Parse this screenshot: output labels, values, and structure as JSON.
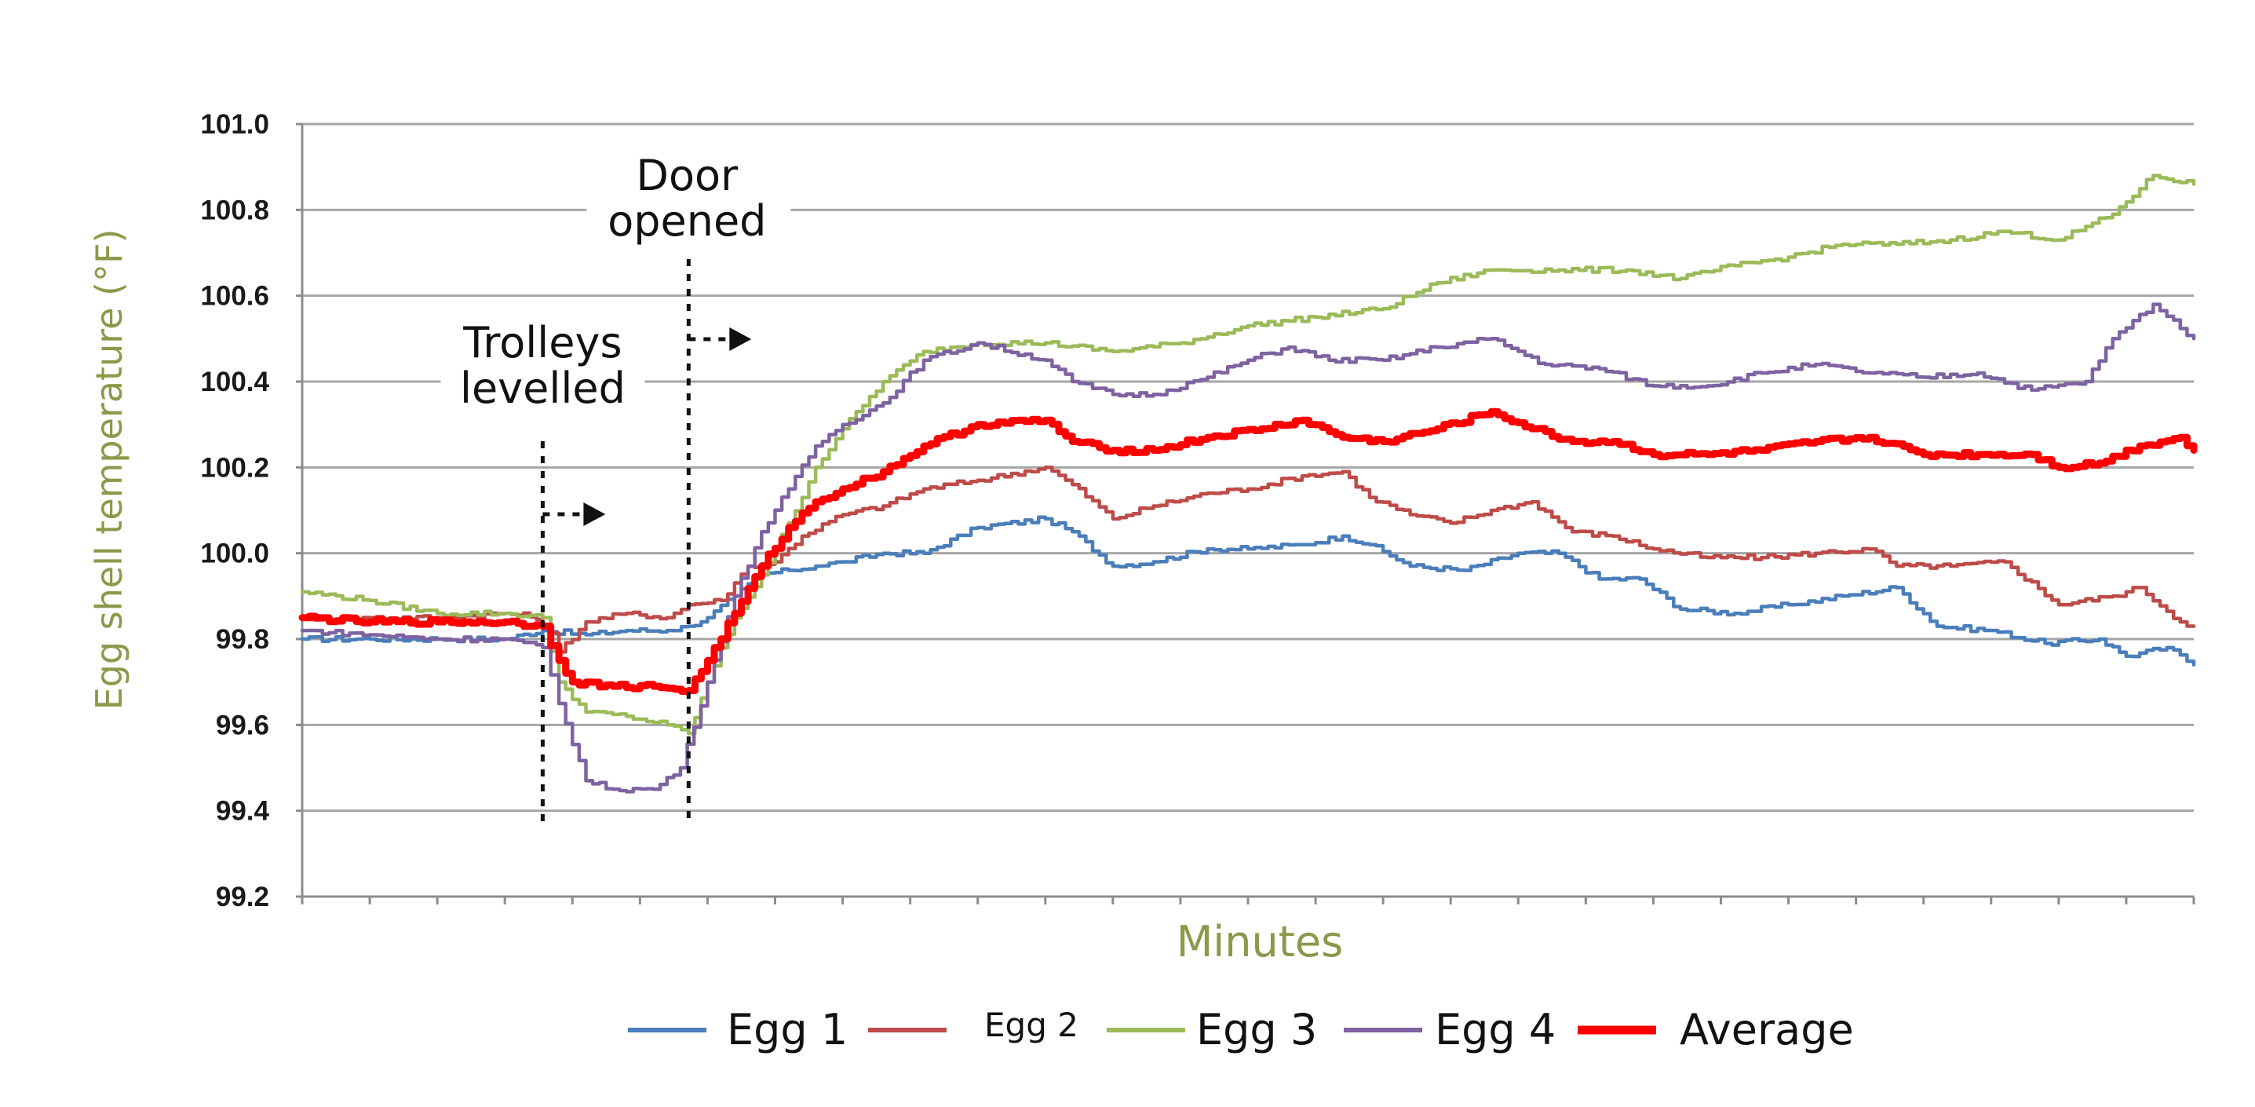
{
  "chart_data": {
    "type": "line",
    "title": "",
    "xlabel": "Minutes",
    "ylabel": "Egg shell temperature (°F)",
    "ylim": [
      99.2,
      101.0
    ],
    "yticks": [
      "99.2",
      "99.4",
      "99.6",
      "99.8",
      "100.0",
      "100.2",
      "100.4",
      "100.6",
      "100.8",
      "101.0"
    ],
    "xlim": [
      0,
      140
    ],
    "x_tick_count": 28,
    "grid": true,
    "legend_position": "bottom",
    "annotations": [
      {
        "label_lines": [
          "Trolleys",
          "levelled"
        ],
        "x": 17.8
      },
      {
        "label_lines": [
          "Door",
          "opened"
        ],
        "x": 28.6
      }
    ],
    "series": [
      {
        "name": "Egg 1",
        "color": "#4a7ebb",
        "points": [
          [
            0,
            99.8
          ],
          [
            5,
            99.8
          ],
          [
            10,
            99.8
          ],
          [
            15,
            99.8
          ],
          [
            17.8,
            99.82
          ],
          [
            21,
            99.81
          ],
          [
            24,
            99.82
          ],
          [
            27,
            99.82
          ],
          [
            28.6,
            99.83
          ],
          [
            30,
            99.85
          ],
          [
            32,
            99.9
          ],
          [
            34,
            99.95
          ],
          [
            36,
            99.96
          ],
          [
            38,
            99.97
          ],
          [
            40,
            99.98
          ],
          [
            43,
            100.0
          ],
          [
            46,
            100.0
          ],
          [
            50,
            100.06
          ],
          [
            55,
            100.08
          ],
          [
            57,
            100.05
          ],
          [
            60,
            99.97
          ],
          [
            63,
            99.98
          ],
          [
            67,
            100.01
          ],
          [
            70,
            100.01
          ],
          [
            74,
            100.02
          ],
          [
            77,
            100.04
          ],
          [
            79,
            100.02
          ],
          [
            82,
            99.97
          ],
          [
            86,
            99.96
          ],
          [
            90,
            100.0
          ],
          [
            93,
            100.0
          ],
          [
            96,
            99.94
          ],
          [
            99,
            99.94
          ],
          [
            102,
            99.87
          ],
          [
            106,
            99.86
          ],
          [
            110,
            99.88
          ],
          [
            114,
            99.9
          ],
          [
            118,
            99.92
          ],
          [
            121,
            99.83
          ],
          [
            125,
            99.82
          ],
          [
            129,
            99.79
          ],
          [
            133,
            99.8
          ],
          [
            135,
            99.76
          ],
          [
            138,
            99.78
          ],
          [
            140,
            99.74
          ]
        ]
      },
      {
        "name": "Egg 2",
        "color": "#be4b48",
        "points": [
          [
            0,
            99.85
          ],
          [
            5,
            99.85
          ],
          [
            10,
            99.85
          ],
          [
            15,
            99.86
          ],
          [
            17.8,
            99.85
          ],
          [
            19,
            99.77
          ],
          [
            21,
            99.84
          ],
          [
            24,
            99.86
          ],
          [
            27,
            99.85
          ],
          [
            28.6,
            99.88
          ],
          [
            31,
            99.89
          ],
          [
            33,
            99.97
          ],
          [
            35,
            99.98
          ],
          [
            37,
            100.04
          ],
          [
            40,
            100.09
          ],
          [
            43,
            100.11
          ],
          [
            46,
            100.15
          ],
          [
            50,
            100.17
          ],
          [
            55,
            100.2
          ],
          [
            57,
            100.16
          ],
          [
            60,
            100.08
          ],
          [
            63,
            100.11
          ],
          [
            67,
            100.14
          ],
          [
            70,
            100.15
          ],
          [
            74,
            100.18
          ],
          [
            77,
            100.19
          ],
          [
            79,
            100.13
          ],
          [
            82,
            100.09
          ],
          [
            85,
            100.07
          ],
          [
            88,
            100.1
          ],
          [
            91,
            100.12
          ],
          [
            94,
            100.05
          ],
          [
            97,
            100.04
          ],
          [
            100,
            100.01
          ],
          [
            104,
            99.99
          ],
          [
            108,
            99.99
          ],
          [
            112,
            100.0
          ],
          [
            116,
            100.01
          ],
          [
            118,
            99.97
          ],
          [
            122,
            99.97
          ],
          [
            126,
            99.98
          ],
          [
            130,
            99.88
          ],
          [
            134,
            99.9
          ],
          [
            136,
            99.92
          ],
          [
            139,
            99.84
          ],
          [
            140,
            99.83
          ]
        ]
      },
      {
        "name": "Egg 3",
        "color": "#9bbb59",
        "points": [
          [
            0,
            99.91
          ],
          [
            5,
            99.89
          ],
          [
            10,
            99.86
          ],
          [
            15,
            99.86
          ],
          [
            17.8,
            99.85
          ],
          [
            19,
            99.7
          ],
          [
            21,
            99.63
          ],
          [
            24,
            99.62
          ],
          [
            27,
            99.6
          ],
          [
            28.6,
            99.58
          ],
          [
            30,
            99.7
          ],
          [
            32,
            99.85
          ],
          [
            34,
            99.95
          ],
          [
            36,
            100.07
          ],
          [
            38,
            100.2
          ],
          [
            40,
            100.29
          ],
          [
            43,
            100.4
          ],
          [
            46,
            100.47
          ],
          [
            50,
            100.49
          ],
          [
            55,
            100.49
          ],
          [
            60,
            100.47
          ],
          [
            65,
            100.49
          ],
          [
            70,
            100.53
          ],
          [
            75,
            100.55
          ],
          [
            80,
            100.57
          ],
          [
            84,
            100.63
          ],
          [
            88,
            100.66
          ],
          [
            93,
            100.66
          ],
          [
            98,
            100.66
          ],
          [
            102,
            100.64
          ],
          [
            106,
            100.67
          ],
          [
            110,
            100.69
          ],
          [
            114,
            100.72
          ],
          [
            118,
            100.72
          ],
          [
            122,
            100.73
          ],
          [
            126,
            100.75
          ],
          [
            130,
            100.73
          ],
          [
            134,
            100.79
          ],
          [
            137,
            100.88
          ],
          [
            140,
            100.86
          ]
        ]
      },
      {
        "name": "Egg 4",
        "color": "#7e62a1",
        "points": [
          [
            0,
            99.82
          ],
          [
            5,
            99.81
          ],
          [
            10,
            99.8
          ],
          [
            15,
            99.8
          ],
          [
            17.8,
            99.78
          ],
          [
            19,
            99.65
          ],
          [
            21,
            99.47
          ],
          [
            23,
            99.45
          ],
          [
            26,
            99.45
          ],
          [
            28,
            99.5
          ],
          [
            30,
            99.7
          ],
          [
            32,
            99.9
          ],
          [
            34,
            100.05
          ],
          [
            36,
            100.15
          ],
          [
            38,
            100.25
          ],
          [
            40,
            100.3
          ],
          [
            43,
            100.35
          ],
          [
            46,
            100.45
          ],
          [
            50,
            100.49
          ],
          [
            55,
            100.45
          ],
          [
            57,
            100.4
          ],
          [
            60,
            100.37
          ],
          [
            63,
            100.37
          ],
          [
            67,
            100.41
          ],
          [
            70,
            100.45
          ],
          [
            73,
            100.48
          ],
          [
            76,
            100.45
          ],
          [
            80,
            100.45
          ],
          [
            84,
            100.48
          ],
          [
            88,
            100.5
          ],
          [
            92,
            100.44
          ],
          [
            96,
            100.43
          ],
          [
            100,
            100.39
          ],
          [
            104,
            100.39
          ],
          [
            108,
            100.42
          ],
          [
            112,
            100.44
          ],
          [
            116,
            100.42
          ],
          [
            120,
            100.41
          ],
          [
            124,
            100.42
          ],
          [
            128,
            100.38
          ],
          [
            132,
            100.4
          ],
          [
            134,
            100.5
          ],
          [
            137,
            100.58
          ],
          [
            140,
            100.5
          ]
        ]
      },
      {
        "name": "Average",
        "color": "#ff0000",
        "points": [
          [
            0,
            99.85
          ],
          [
            5,
            99.84
          ],
          [
            10,
            99.84
          ],
          [
            15,
            99.84
          ],
          [
            17.8,
            99.83
          ],
          [
            19,
            99.75
          ],
          [
            20,
            99.7
          ],
          [
            23,
            99.69
          ],
          [
            26,
            99.69
          ],
          [
            28.6,
            99.68
          ],
          [
            30,
            99.75
          ],
          [
            32,
            99.86
          ],
          [
            34,
            99.97
          ],
          [
            36,
            100.06
          ],
          [
            38,
            100.12
          ],
          [
            40,
            100.15
          ],
          [
            43,
            100.19
          ],
          [
            46,
            100.25
          ],
          [
            50,
            100.3
          ],
          [
            55,
            100.31
          ],
          [
            57,
            100.26
          ],
          [
            60,
            100.24
          ],
          [
            63,
            100.24
          ],
          [
            67,
            100.27
          ],
          [
            71,
            100.29
          ],
          [
            74,
            100.31
          ],
          [
            77,
            100.27
          ],
          [
            80,
            100.26
          ],
          [
            84,
            100.29
          ],
          [
            88,
            100.33
          ],
          [
            91,
            100.29
          ],
          [
            94,
            100.26
          ],
          [
            97,
            100.26
          ],
          [
            100,
            100.23
          ],
          [
            104,
            100.23
          ],
          [
            108,
            100.24
          ],
          [
            112,
            100.26
          ],
          [
            116,
            100.27
          ],
          [
            120,
            100.23
          ],
          [
            124,
            100.23
          ],
          [
            128,
            100.23
          ],
          [
            130,
            100.2
          ],
          [
            133,
            100.21
          ],
          [
            136,
            100.25
          ],
          [
            139,
            100.27
          ],
          [
            140,
            100.24
          ]
        ]
      }
    ]
  },
  "legend": {
    "items": [
      {
        "label": "Egg 1",
        "color": "#4a7ebb"
      },
      {
        "label": "Egg 2",
        "color": "#be4b48"
      },
      {
        "label": "Egg 3",
        "color": "#9bbb59"
      },
      {
        "label": "Egg 4",
        "color": "#7e62a1"
      },
      {
        "label": "Average",
        "color": "#ff0000"
      }
    ]
  },
  "colors": {
    "axis_title": "#8a9a4a",
    "grid": "#a6a6a6",
    "axis_line": "#8c8c8c",
    "annotation_line": "#111111"
  }
}
